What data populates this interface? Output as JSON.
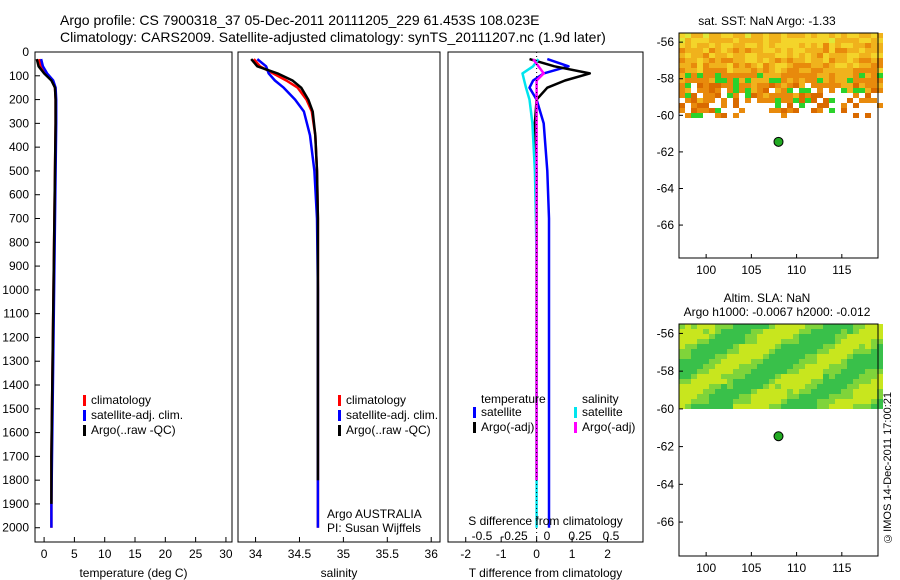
{
  "header": {
    "line1": "Argo profile: CS 7900318_37 05-Dec-2011 20111205_229 61.453S 108.023E",
    "line2": "Climatology: CARS2009. Satellite-adjusted climatology: synTS_20111207.nc (1.9d later)"
  },
  "footer_stamp": "©IMOS 14-Dec-2011 17:00:21",
  "colors": {
    "climatology": "#ff0000",
    "satellite": "#0000ff",
    "argo": "#000000",
    "satellite_s": "#00e5ee",
    "argo_s": "#ff00ff",
    "map_dot": "#22aa22"
  },
  "chart_data": [
    {
      "id": "temperature",
      "type": "line",
      "xlabel": "temperature (deg C)",
      "ylabel": "",
      "xlim": [
        -1.5,
        31
      ],
      "ylim": [
        2060,
        0
      ],
      "y_inverted": true,
      "xticks": [
        0,
        5,
        10,
        15,
        20,
        25,
        30
      ],
      "yticks": [
        0,
        100,
        200,
        300,
        400,
        500,
        600,
        700,
        800,
        900,
        1000,
        1100,
        1200,
        1300,
        1400,
        1500,
        1600,
        1700,
        1800,
        1900,
        2000
      ],
      "legend": [
        "climatology",
        "satellite-adj. clim.",
        "Argo(..raw -QC)"
      ],
      "series": [
        {
          "name": "climatology",
          "color": "#ff0000",
          "x": [
            -0.8,
            -0.5,
            0.2,
            1.3,
            1.8,
            1.9,
            1.9,
            1.8,
            1.7,
            1.6,
            1.5,
            1.4,
            1.3,
            1.2,
            1.2,
            1.2
          ],
          "y": [
            30,
            60,
            90,
            120,
            150,
            200,
            300,
            500,
            700,
            900,
            1100,
            1300,
            1500,
            1700,
            1900,
            2000
          ]
        },
        {
          "name": "satellite-adj. clim.",
          "color": "#0000ff",
          "x": [
            -0.5,
            -0.2,
            0.5,
            1.5,
            1.9,
            2.0,
            2.0,
            1.9,
            1.8,
            1.7,
            1.6,
            1.5,
            1.4,
            1.3,
            1.2,
            1.2
          ],
          "y": [
            30,
            60,
            90,
            120,
            150,
            200,
            300,
            500,
            700,
            900,
            1100,
            1300,
            1500,
            1700,
            1900,
            2000
          ]
        },
        {
          "name": "Argo(..raw -QC)",
          "color": "#000000",
          "x": [
            -1.2,
            -0.9,
            0.0,
            1.2,
            1.8,
            1.9,
            1.9,
            1.8,
            1.7,
            1.6,
            1.5,
            1.4,
            1.3,
            1.2,
            1.2
          ],
          "y": [
            30,
            60,
            90,
            120,
            150,
            200,
            300,
            500,
            700,
            900,
            1100,
            1300,
            1500,
            1700,
            1900
          ]
        }
      ]
    },
    {
      "id": "salinity",
      "type": "line",
      "xlabel": "salinity",
      "xlim": [
        33.8,
        36.1
      ],
      "ylim": [
        2060,
        0
      ],
      "y_inverted": true,
      "xticks": [
        34,
        34.5,
        35,
        35.5,
        36
      ],
      "legend": [
        "climatology",
        "satellite-adj. clim.",
        "Argo(..raw -QC)"
      ],
      "annotation": [
        "Argo AUSTRALIA",
        "PI: Susan Wijffels"
      ],
      "series": [
        {
          "name": "climatology",
          "color": "#ff0000",
          "x": [
            33.98,
            34.05,
            34.2,
            34.35,
            34.48,
            34.58,
            34.64,
            34.68,
            34.7,
            34.71,
            34.71,
            34.71,
            34.71,
            34.71
          ],
          "y": [
            30,
            60,
            90,
            120,
            150,
            200,
            250,
            350,
            500,
            700,
            1000,
            1400,
            1800,
            2000
          ]
        },
        {
          "name": "satellite-adj. clim.",
          "color": "#0000ff",
          "x": [
            34.02,
            34.12,
            34.15,
            34.22,
            34.32,
            34.45,
            34.55,
            34.62,
            34.67,
            34.7,
            34.71,
            34.71,
            34.71,
            34.71
          ],
          "y": [
            30,
            60,
            90,
            120,
            150,
            200,
            250,
            350,
            500,
            700,
            1000,
            1400,
            1800,
            2000
          ]
        },
        {
          "name": "Argo(..raw -QC)",
          "color": "#000000",
          "x": [
            33.95,
            34.02,
            34.25,
            34.42,
            34.52,
            34.6,
            34.65,
            34.68,
            34.7,
            34.71,
            34.71,
            34.71,
            34.71
          ],
          "y": [
            30,
            60,
            90,
            120,
            150,
            200,
            250,
            350,
            500,
            700,
            1000,
            1400,
            1800
          ]
        }
      ]
    },
    {
      "id": "difference",
      "type": "line",
      "xlabel": "T difference from climatology",
      "top_label": "S difference from climatology",
      "xlim": [
        -2.5,
        3
      ],
      "ylim": [
        2060,
        0
      ],
      "y_inverted": true,
      "xticks": [
        -2,
        -1,
        0,
        1,
        2
      ],
      "sticks": [
        -0.5,
        -0.25,
        0,
        0.25,
        0.5
      ],
      "legend_headers": [
        "temperature",
        "salinity"
      ],
      "legend_t": [
        "satellite",
        "Argo(-adj)"
      ],
      "legend_s": [
        "satellite",
        "Argo(-adj)"
      ],
      "series": [
        {
          "name": "T satellite",
          "color": "#0000ff",
          "x": [
            0.3,
            0.9,
            0.2,
            -0.1,
            -0.2,
            0.0,
            0.2,
            0.3,
            0.35,
            0.35,
            0.35,
            0.35,
            0.35,
            0.35
          ],
          "y": [
            30,
            60,
            90,
            120,
            150,
            200,
            300,
            500,
            700,
            900,
            1200,
            1500,
            1800,
            2000
          ]
        },
        {
          "name": "T Argo(-adj)",
          "color": "#000000",
          "x": [
            -0.2,
            0.5,
            1.5,
            0.8,
            0.3,
            0.0,
            -0.05,
            0.0,
            0.0,
            0.0,
            0.0,
            0.0,
            0.0
          ],
          "y": [
            30,
            60,
            90,
            120,
            150,
            200,
            300,
            500,
            700,
            900,
            1200,
            1500,
            1800
          ]
        },
        {
          "name": "S satellite",
          "color": "#00e5ee",
          "x": [
            0.05,
            -0.1,
            -0.4,
            -0.35,
            -0.3,
            -0.2,
            -0.12,
            -0.05,
            -0.02,
            0.0,
            0.0,
            0.0,
            0.0,
            0.0
          ],
          "y": [
            30,
            60,
            90,
            120,
            150,
            200,
            300,
            500,
            700,
            900,
            1200,
            1500,
            1800,
            2000
          ]
        },
        {
          "name": "S Argo(-adj)",
          "color": "#ff00ff",
          "x": [
            -0.1,
            0.05,
            0.2,
            0.0,
            0.0,
            0.0,
            0.0,
            0.0,
            0.0,
            0.0,
            0.0,
            0.0,
            0.0
          ],
          "y": [
            30,
            60,
            90,
            120,
            150,
            200,
            300,
            500,
            700,
            900,
            1200,
            1500,
            1800
          ]
        }
      ]
    },
    {
      "id": "sst_map",
      "type": "heatmap",
      "title": "sat. SST: NaN Argo: -1.33",
      "xlim": [
        97,
        119
      ],
      "ylim": [
        -67.8,
        -55.5
      ],
      "xticks": [
        100,
        105,
        110,
        115
      ],
      "yticks": [
        -56,
        -58,
        -60,
        -62,
        -64,
        -66
      ],
      "argo_position": [
        108.0,
        -61.45
      ]
    },
    {
      "id": "sla_map",
      "type": "heatmap",
      "title": "Altim. SLA: NaN",
      "subtitle": "Argo h1000: -0.0067 h2000: -0.012",
      "xlim": [
        97,
        119
      ],
      "ylim": [
        -67.8,
        -55.5
      ],
      "xticks": [
        100,
        105,
        110,
        115
      ],
      "yticks": [
        -56,
        -58,
        -60,
        -62,
        -64,
        -66
      ],
      "argo_position": [
        108.0,
        -61.45
      ]
    }
  ]
}
